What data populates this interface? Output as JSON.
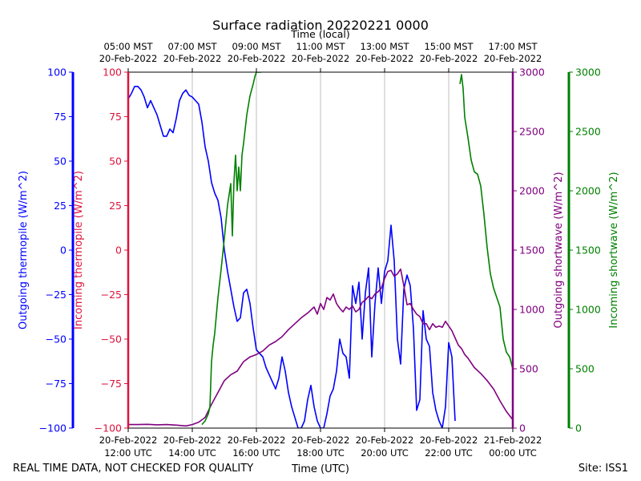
{
  "chart_data": {
    "type": "line",
    "title": "Surface radiation 20220221 0000",
    "top_axis_label": "Time (local)",
    "xlabel": "Time (UTC)",
    "footer_left": "REAL TIME DATA, NOT CHECKED FOR QUALITY",
    "footer_right": "Site: ISS1",
    "x_range_hours_utc": [
      12,
      24
    ],
    "grid": "vertical",
    "bottom_ticks": [
      {
        "x": 12,
        "date": "20-Feb-2022",
        "time": "12:00 UTC"
      },
      {
        "x": 14,
        "date": "20-Feb-2022",
        "time": "14:00 UTC"
      },
      {
        "x": 16,
        "date": "20-Feb-2022",
        "time": "16:00 UTC"
      },
      {
        "x": 18,
        "date": "20-Feb-2022",
        "time": "18:00 UTC"
      },
      {
        "x": 20,
        "date": "20-Feb-2022",
        "time": "20:00 UTC"
      },
      {
        "x": 22,
        "date": "20-Feb-2022",
        "time": "22:00 UTC"
      },
      {
        "x": 24,
        "date": "21-Feb-2022",
        "time": "00:00 UTC"
      }
    ],
    "top_ticks": [
      {
        "x": 12,
        "time": "05:00 MST",
        "date": "20-Feb-2022"
      },
      {
        "x": 14,
        "time": "07:00 MST",
        "date": "20-Feb-2022"
      },
      {
        "x": 16,
        "time": "09:00 MST",
        "date": "20-Feb-2022"
      },
      {
        "x": 18,
        "time": "11:00 MST",
        "date": "20-Feb-2022"
      },
      {
        "x": 20,
        "time": "13:00 MST",
        "date": "20-Feb-2022"
      },
      {
        "x": 22,
        "time": "15:00 MST",
        "date": "20-Feb-2022"
      },
      {
        "x": 24,
        "time": "17:00 MST",
        "date": "20-Feb-2022"
      }
    ],
    "axes": {
      "outgoing_thermopile": {
        "label": "Outgoing thermopile (W/m^2)",
        "color": "#0000ff",
        "ylim": [
          -100,
          100
        ],
        "ticks": [
          -100,
          -75,
          -50,
          -25,
          0,
          25,
          50,
          75,
          100
        ]
      },
      "incoming_thermopile": {
        "label": "Incoming thermopile (W/m^2)",
        "color": "#dc143c",
        "ylim": [
          -100,
          100
        ],
        "ticks": [
          -100,
          -75,
          -50,
          -25,
          0,
          25,
          50,
          75,
          100
        ]
      },
      "outgoing_shortwave": {
        "label": "Outgoing shortwave (W/m^2)",
        "color": "#800080",
        "ylim": [
          0,
          3000
        ],
        "ticks": [
          0,
          500,
          1000,
          1500,
          2000,
          2500,
          3000
        ]
      },
      "incoming_shortwave": {
        "label": "Incoming shortwave (W/m^2)",
        "color": "#008000",
        "ylim": [
          0,
          3000
        ],
        "ticks": [
          0,
          500,
          1000,
          1500,
          2000,
          2500,
          3000
        ]
      }
    },
    "series": [
      {
        "key": "outgoing_thermopile",
        "axis": "outgoing_thermopile",
        "x": [
          12.0,
          12.1,
          12.2,
          12.3,
          12.4,
          12.5,
          12.6,
          12.7,
          12.8,
          12.9,
          13.0,
          13.1,
          13.2,
          13.3,
          13.4,
          13.5,
          13.6,
          13.7,
          13.8,
          13.9,
          14.0,
          14.1,
          14.2,
          14.3,
          14.4,
          14.5,
          14.6,
          14.7,
          14.8,
          14.9,
          15.0,
          15.1,
          15.2,
          15.3,
          15.4,
          15.5,
          15.6,
          15.7,
          15.8,
          15.9,
          16.0,
          16.1,
          16.2,
          16.3,
          16.4,
          16.5,
          16.6,
          16.7,
          16.8,
          16.9,
          17.0,
          17.1,
          17.2,
          17.3,
          17.4,
          17.5,
          17.6,
          17.7,
          17.8,
          17.9,
          18.0,
          18.1,
          18.2,
          18.3,
          18.4,
          18.5,
          18.6,
          18.7,
          18.8,
          18.9,
          19.0,
          19.1,
          19.2,
          19.3,
          19.4,
          19.5,
          19.6,
          19.7,
          19.8,
          19.9,
          20.0,
          20.1,
          20.2,
          20.3,
          20.4,
          20.5,
          20.6,
          20.7,
          20.8,
          20.9,
          21.0,
          21.1,
          21.2,
          21.3,
          21.4,
          21.5,
          21.6,
          21.7,
          21.8,
          21.9,
          22.0,
          22.1,
          22.2
        ],
        "y": [
          85,
          88,
          92,
          92,
          90,
          86,
          80,
          84,
          80,
          76,
          70,
          64,
          64,
          68,
          66,
          74,
          84,
          88,
          90,
          87,
          86,
          84,
          82,
          72,
          58,
          50,
          38,
          32,
          28,
          18,
          0,
          -12,
          -22,
          -32,
          -40,
          -38,
          -24,
          -22,
          -30,
          -44,
          -56,
          -58,
          -60,
          -66,
          -70,
          -74,
          -78,
          -72,
          -60,
          -68,
          -80,
          -88,
          -94,
          -100,
          -100,
          -96,
          -84,
          -76,
          -88,
          -96,
          -100,
          -100,
          -92,
          -82,
          -78,
          -68,
          -50,
          -58,
          -60,
          -72,
          -20,
          -30,
          -18,
          -50,
          -24,
          -10,
          -60,
          -30,
          -10,
          -30,
          -12,
          -6,
          14,
          -6,
          -50,
          -64,
          -22,
          -14,
          -20,
          -44,
          -90,
          -84,
          -34,
          -50,
          -54,
          -80,
          -90,
          -96,
          -100,
          -88,
          -52,
          -60,
          -96
        ]
      },
      {
        "key": "outgoing_shortwave",
        "axis": "outgoing_shortwave",
        "x": [
          12.0,
          12.3,
          12.6,
          12.9,
          13.2,
          13.5,
          13.8,
          14.0,
          14.2,
          14.4,
          14.6,
          14.8,
          15.0,
          15.2,
          15.4,
          15.5,
          15.6,
          15.8,
          16.0,
          16.2,
          16.4,
          16.6,
          16.8,
          17.0,
          17.2,
          17.4,
          17.6,
          17.8,
          17.9,
          18.0,
          18.1,
          18.2,
          18.3,
          18.4,
          18.5,
          18.6,
          18.7,
          18.8,
          18.9,
          19.0,
          19.1,
          19.2,
          19.3,
          19.4,
          19.5,
          19.6,
          19.7,
          19.8,
          19.9,
          20.0,
          20.1,
          20.2,
          20.3,
          20.4,
          20.5,
          20.6,
          20.7,
          20.8,
          20.9,
          21.0,
          21.1,
          21.2,
          21.3,
          21.4,
          21.5,
          21.6,
          21.7,
          21.8,
          21.9,
          22.0,
          22.1,
          22.2,
          22.3,
          22.4,
          22.5,
          22.6,
          22.8,
          23.0,
          23.2,
          23.4,
          23.6,
          23.8,
          24.0
        ],
        "y": [
          30,
          30,
          32,
          28,
          30,
          25,
          18,
          30,
          50,
          90,
          200,
          300,
          400,
          450,
          480,
          520,
          560,
          600,
          620,
          650,
          700,
          730,
          770,
          830,
          880,
          930,
          970,
          1020,
          960,
          1050,
          1000,
          1100,
          1080,
          1130,
          1050,
          1010,
          980,
          1020,
          1000,
          1030,
          980,
          1000,
          1060,
          1080,
          1110,
          1090,
          1130,
          1150,
          1180,
          1260,
          1320,
          1330,
          1280,
          1300,
          1340,
          1200,
          1040,
          1050,
          1000,
          960,
          940,
          880,
          880,
          830,
          880,
          850,
          860,
          850,
          900,
          860,
          820,
          760,
          700,
          670,
          620,
          590,
          510,
          460,
          400,
          330,
          230,
          140,
          70
        ]
      },
      {
        "key": "incoming_shortwave",
        "axis": "incoming_shortwave",
        "x": [
          14.3,
          14.4,
          14.5,
          14.55,
          14.6,
          14.65,
          14.7,
          14.8,
          14.9,
          15.0,
          15.1,
          15.2,
          15.25,
          15.3,
          15.35,
          15.4,
          15.45,
          15.5,
          15.55,
          15.6,
          15.7,
          15.8,
          15.85,
          15.9,
          15.95,
          16.0,
          16.05,
          16.1,
          16.15
        ],
        "y": [
          30,
          60,
          120,
          180,
          560,
          700,
          800,
          1100,
          1340,
          1600,
          1880,
          2060,
          1620,
          2080,
          2300,
          2000,
          2200,
          2000,
          2300,
          2400,
          2640,
          2800,
          2850,
          2900,
          2960,
          3000,
          3000,
          3000,
          3000
        ],
        "x2": [
          22.35,
          22.4,
          22.45,
          22.5,
          22.6,
          22.7,
          22.8,
          22.9,
          23.0,
          23.1,
          23.2,
          23.3,
          23.4,
          23.5,
          23.6,
          23.7,
          23.8,
          23.9,
          24.0
        ],
        "y2": [
          2900,
          2980,
          2860,
          2620,
          2450,
          2260,
          2160,
          2140,
          2040,
          1800,
          1520,
          1300,
          1180,
          1100,
          1020,
          750,
          640,
          600,
          500
        ]
      }
    ]
  }
}
